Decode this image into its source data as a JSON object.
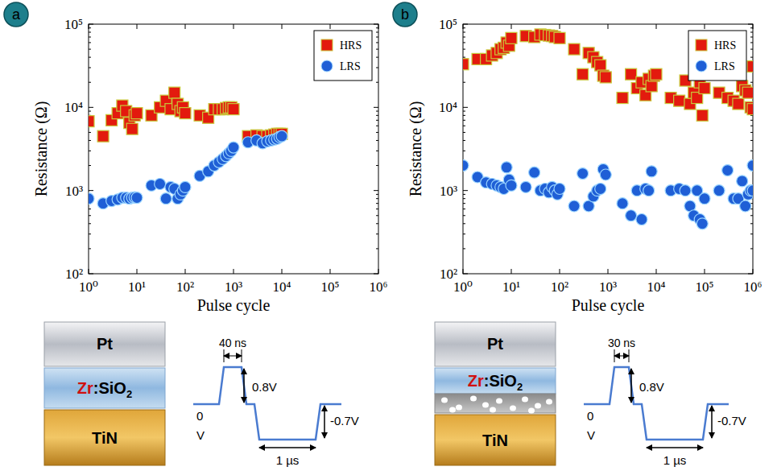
{
  "chart_data": [
    {
      "type": "scatter",
      "panel_label": "a",
      "x_label": "Pulse cycle",
      "y_label": "Resistance (Ω)",
      "log": true,
      "grid": false,
      "legend": "upper right",
      "xlim": [
        1,
        1000000
      ],
      "ylim": [
        100,
        100000
      ],
      "xticks": [
        {
          "value": 1,
          "label": "10⁰"
        },
        {
          "value": 10,
          "label": "10¹"
        },
        {
          "value": 100,
          "label": "10²"
        },
        {
          "value": 1000,
          "label": "10³"
        },
        {
          "value": 10000,
          "label": "10⁴"
        },
        {
          "value": 100000,
          "label": "10⁵"
        },
        {
          "value": 1000000,
          "label": "10⁶"
        }
      ],
      "yticks": [
        {
          "value": 100,
          "label": "10²"
        },
        {
          "value": 1000,
          "label": "10³"
        },
        {
          "value": 10000,
          "label": "10⁴"
        },
        {
          "value": 100000,
          "label": "10⁵"
        }
      ],
      "series": [
        {
          "name": "HRS",
          "color": "#e31a0e",
          "marker": "square",
          "x": [
            1,
            2,
            3,
            4,
            5,
            6,
            7,
            8,
            9,
            10,
            20,
            30,
            40,
            50,
            60,
            70,
            80,
            90,
            100,
            200,
            300,
            400,
            500,
            600,
            700,
            800,
            900,
            1000,
            2000,
            3000,
            4000,
            5000,
            6000,
            7000,
            8000,
            9000,
            10000
          ],
          "values": [
            6800,
            4500,
            7000,
            8500,
            10500,
            9000,
            6500,
            5500,
            8000,
            8500,
            8000,
            10000,
            12000,
            9500,
            15000,
            11000,
            9000,
            10000,
            8500,
            8000,
            7500,
            9500,
            9500,
            9500,
            9800,
            10000,
            10000,
            9500,
            4500,
            4600,
            4500,
            4500,
            4600,
            4700,
            4800,
            4800,
            4800
          ]
        },
        {
          "name": "LRS",
          "color": "#1f5fd6",
          "marker": "circle",
          "x": [
            1,
            2,
            3,
            4,
            5,
            6,
            7,
            8,
            9,
            10,
            20,
            30,
            40,
            50,
            60,
            70,
            80,
            90,
            100,
            200,
            300,
            400,
            500,
            600,
            700,
            800,
            900,
            1000,
            2000,
            3000,
            4000,
            5000,
            6000,
            7000,
            8000,
            9000,
            10000
          ],
          "values": [
            800,
            700,
            750,
            780,
            820,
            820,
            800,
            820,
            830,
            820,
            1150,
            1200,
            800,
            1100,
            1050,
            800,
            900,
            1000,
            1100,
            1500,
            1700,
            2000,
            2200,
            2400,
            2600,
            2800,
            3000,
            3300,
            3800,
            4000,
            3700,
            3900,
            4000,
            4100,
            4200,
            4400,
            4500
          ]
        }
      ],
      "annotations": {
        "top_electrode": "Pt",
        "dopant": "Zr",
        "host": ":SiO",
        "host_sub": "2",
        "bottom_electrode": "TiN",
        "set_width": "40 ns",
        "set_amplitude": "0.8V",
        "zero": "0",
        "zero_unit": "V",
        "reset_amplitude": "-0.7V",
        "reset_width": "1 µs"
      }
    },
    {
      "type": "scatter",
      "panel_label": "b",
      "x_label": "Pulse cycle",
      "y_label": "Resistance (Ω)",
      "log": true,
      "grid": false,
      "legend": "upper right",
      "xlim": [
        1,
        1000000
      ],
      "ylim": [
        100,
        100000
      ],
      "xticks": [
        {
          "value": 1,
          "label": "10⁰"
        },
        {
          "value": 10,
          "label": "10¹"
        },
        {
          "value": 100,
          "label": "10²"
        },
        {
          "value": 1000,
          "label": "10³"
        },
        {
          "value": 10000,
          "label": "10⁴"
        },
        {
          "value": 100000,
          "label": "10⁵"
        },
        {
          "value": 1000000,
          "label": "10⁶"
        }
      ],
      "yticks": [
        {
          "value": 100,
          "label": "10²"
        },
        {
          "value": 1000,
          "label": "10³"
        },
        {
          "value": 10000,
          "label": "10⁴"
        },
        {
          "value": 100000,
          "label": "10⁵"
        }
      ],
      "series": [
        {
          "name": "HRS",
          "color": "#e31a0e",
          "marker": "square",
          "x": [
            1,
            2,
            3,
            4,
            5,
            6,
            7,
            8,
            9,
            10,
            20,
            30,
            40,
            50,
            60,
            70,
            80,
            100,
            200,
            300,
            400,
            500,
            600,
            700,
            800,
            900,
            2000,
            3000,
            4000,
            5000,
            6000,
            7000,
            8000,
            9000,
            10000,
            20000,
            30000,
            40000,
            50000,
            60000,
            70000,
            80000,
            90000,
            100000,
            200000,
            300000,
            400000,
            500000,
            600000,
            700000,
            800000,
            900000,
            1000000,
            1000000
          ],
          "values": [
            33000,
            38000,
            38000,
            42000,
            45000,
            50000,
            52000,
            60000,
            55000,
            68000,
            72000,
            70000,
            75000,
            74000,
            73000,
            72000,
            70000,
            68000,
            50000,
            25000,
            45000,
            40000,
            35000,
            32000,
            24000,
            23000,
            13000,
            25000,
            17000,
            20000,
            14000,
            22000,
            18000,
            24000,
            25000,
            13000,
            12000,
            21000,
            11000,
            15000,
            13000,
            20000,
            8000,
            17000,
            15000,
            13000,
            12000,
            11000,
            18000,
            16000,
            15000,
            10000,
            31000,
            9500
          ]
        },
        {
          "name": "LRS",
          "color": "#1f5fd6",
          "marker": "circle",
          "x": [
            1,
            2,
            3,
            4,
            5,
            6,
            7,
            8,
            9,
            10,
            20,
            30,
            40,
            50,
            60,
            70,
            80,
            90,
            100,
            200,
            300,
            400,
            500,
            600,
            700,
            800,
            900,
            2000,
            3000,
            4000,
            5000,
            6000,
            7000,
            8000,
            20000,
            30000,
            40000,
            50000,
            60000,
            70000,
            80000,
            90000,
            100000,
            200000,
            300000,
            400000,
            500000,
            600000,
            700000,
            800000,
            900000,
            1000000,
            1000000
          ],
          "values": [
            2000,
            1450,
            1250,
            1200,
            1150,
            1100,
            1050,
            1900,
            1350,
            1150,
            1100,
            1650,
            1000,
            1050,
            950,
            1100,
            1000,
            900,
            1050,
            650,
            1600,
            650,
            850,
            1000,
            1050,
            1800,
            1550,
            700,
            500,
            1000,
            450,
            1050,
            1000,
            1700,
            1000,
            1050,
            1000,
            650,
            500,
            1000,
            450,
            400,
            800,
            1000,
            1750,
            800,
            800,
            1300,
            650,
            900,
            1000,
            2000,
            1000
          ]
        }
      ],
      "annotations": {
        "top_electrode": "Pt",
        "dopant": "Zr",
        "host": ":SiO",
        "host_sub": "2",
        "bottom_electrode": "TiN",
        "set_width": "30 ns",
        "set_amplitude": "0.8V",
        "zero": "0",
        "zero_unit": "V",
        "reset_amplitude": "-0.7V",
        "reset_width": "1 µs"
      }
    }
  ]
}
